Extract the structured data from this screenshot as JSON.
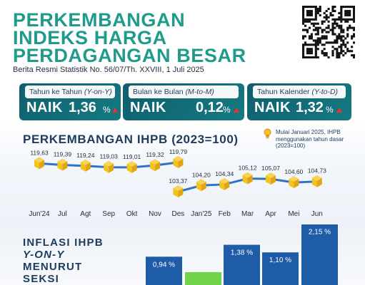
{
  "title": [
    "PERKEMBANGAN",
    "INDEKS HARGA",
    "PERDAGANGAN BESAR"
  ],
  "subtitle": "Berita Resmi Statistik No. 56/07/Th. XXVIII, 1 Juli 2025",
  "qr_code": "qr-code",
  "cards": [
    {
      "label": "Tahun ke Tahun",
      "label_note": "(Y-on-Y)",
      "status": "NAIK",
      "value": "1,36",
      "unit": "%",
      "trend": "up",
      "trend_color": "#e8322b"
    },
    {
      "label": "Bulan ke Bulan",
      "label_note": "(M-to-M)",
      "status": "NAIK",
      "value": "0,12",
      "unit": "%",
      "trend": "up",
      "trend_color": "#e8322b"
    },
    {
      "label": "Tahun Kalender",
      "label_note": "(Y-to-D)",
      "status": "NAIK",
      "value": "1,32",
      "unit": "%",
      "trend": "up",
      "trend_color": "#e8322b"
    }
  ],
  "ihpb_section_title": "PERKEMBANGAN IHPB (2023=100)",
  "note": {
    "icon": "lightbulb-icon",
    "text": "Mulai Januari 2025, IHPB menggunakan tahun dasar (2023=100)"
  },
  "chart_data": [
    {
      "type": "line",
      "categories": [
        "Jun'24",
        "Jul",
        "Agt",
        "Sep",
        "Okt",
        "Nov",
        "Des",
        "Jan'25",
        "Feb",
        "Mar",
        "Apr",
        "Mei",
        "Jun"
      ],
      "series": [
        {
          "values": [
            119.63,
            119.39,
            119.24,
            119.03,
            119.01,
            119.32,
            119.79,
            null,
            null,
            null,
            null,
            null,
            null
          ]
        },
        {
          "values": [
            null,
            null,
            null,
            null,
            null,
            null,
            103.37,
            104.2,
            104.34,
            105.12,
            105.07,
            104.6,
            104.73
          ]
        }
      ],
      "labels": [
        "119,63",
        "119,39",
        "119,24",
        "119,03",
        "119,01",
        "119,32",
        "119,79",
        "103,37",
        "104,20",
        "104,34",
        "105,12",
        "105,07",
        "104,60",
        "104,73"
      ],
      "line_color": "#2e74c6",
      "marker_color": "#f3c21b"
    },
    {
      "type": "bar",
      "title": [
        "INFLASI IHPB",
        "Y-ON-Y",
        "MENURUT",
        "SEKSI"
      ],
      "values": [
        0.94,
        null,
        1.38,
        1.1,
        2.15
      ],
      "labels": [
        "0,94 %",
        "",
        "1,38 %",
        "1,10 %",
        "2,15 %"
      ],
      "bar_colors": [
        "#1e5ca8",
        "#6fd44a",
        "#1e5ca8",
        "#1e5ca8",
        "#1e5ca8"
      ]
    }
  ]
}
